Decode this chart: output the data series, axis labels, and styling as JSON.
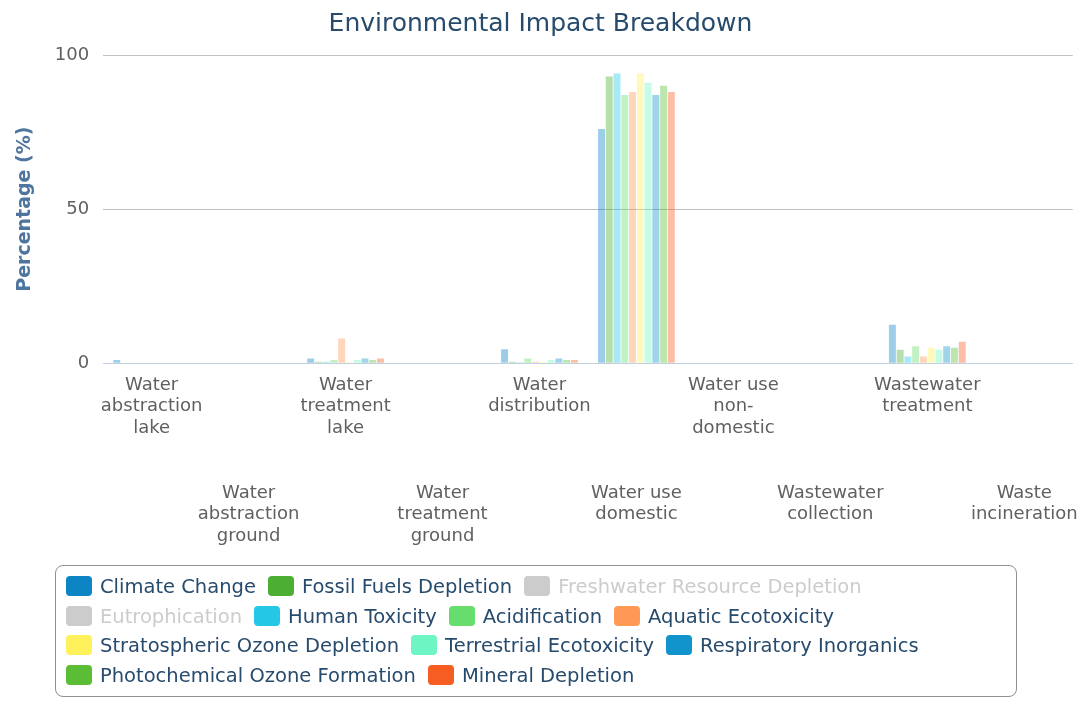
{
  "chart_data": {
    "type": "bar",
    "title": "Environmental Impact Breakdown",
    "ylabel": "Percentage (%)",
    "categories": [
      "Water abstraction lake",
      "Water abstraction ground",
      "Water treatment lake",
      "Water treatment ground",
      "Water distribution",
      "Water use domestic",
      "Water use non-domestic",
      "Wastewater collection",
      "Wastewater treatment",
      "Waste incineration"
    ],
    "ylim": [
      0,
      100
    ],
    "yticks": [
      0,
      50,
      100
    ],
    "grid": "y",
    "legend": "bottom",
    "series": [
      {
        "name": "Climate Change",
        "color": "#0d84c4",
        "values": [
          1,
          0,
          1.5,
          0,
          4.5,
          76,
          0,
          0,
          12.5,
          0
        ]
      },
      {
        "name": "Fossil Fuels Depletion",
        "color": "#4caf33",
        "values": [
          0,
          0,
          0.5,
          0,
          0.5,
          93,
          0,
          0,
          4.4,
          0
        ]
      },
      {
        "name": "Freshwater Resource Depletion",
        "color": "#cccccc",
        "values": [
          null,
          null,
          null,
          null,
          null,
          null,
          null,
          null,
          null,
          null
        ]
      },
      {
        "name": "Eutrophication",
        "color": "#cccccc",
        "values": [
          null,
          null,
          null,
          null,
          null,
          null,
          null,
          null,
          null,
          null
        ]
      },
      {
        "name": "Human Toxicity",
        "color": "#24c8e4",
        "values": [
          0,
          0,
          0.5,
          0,
          0.3,
          94,
          0,
          0,
          2.2,
          0
        ]
      },
      {
        "name": "Acidification",
        "color": "#66dd6c",
        "values": [
          0,
          0,
          1,
          0,
          1.5,
          87,
          0,
          0,
          5.5,
          0
        ]
      },
      {
        "name": "Aquatic Ecotoxicity",
        "color": "#ff9955",
        "values": [
          0,
          0,
          8,
          0,
          0.5,
          88,
          0,
          0,
          2.2,
          0
        ]
      },
      {
        "name": "Stratospheric Ozone Depletion",
        "color": "#fff15c",
        "values": [
          0,
          0,
          0.3,
          0,
          0.5,
          94,
          0,
          0,
          5,
          0
        ]
      },
      {
        "name": "Terrestrial Ecotoxicity",
        "color": "#6df5c3",
        "values": [
          0,
          0,
          1,
          0,
          1,
          91,
          0,
          0,
          4.4,
          0
        ]
      },
      {
        "name": "Respiratory Inorganics",
        "color": "#1193cc",
        "values": [
          0,
          0,
          1.5,
          0,
          1.5,
          87,
          0,
          0,
          5.5,
          0
        ]
      },
      {
        "name": "Photochemical Ozone Formation",
        "color": "#5bbd35",
        "values": [
          0,
          0,
          1,
          0,
          1,
          90,
          0,
          0,
          5,
          0
        ]
      },
      {
        "name": "Mineral Depletion",
        "color": "#f55d22",
        "values": [
          0,
          0,
          1.5,
          0,
          1,
          88,
          0,
          0,
          7,
          0
        ]
      }
    ]
  }
}
